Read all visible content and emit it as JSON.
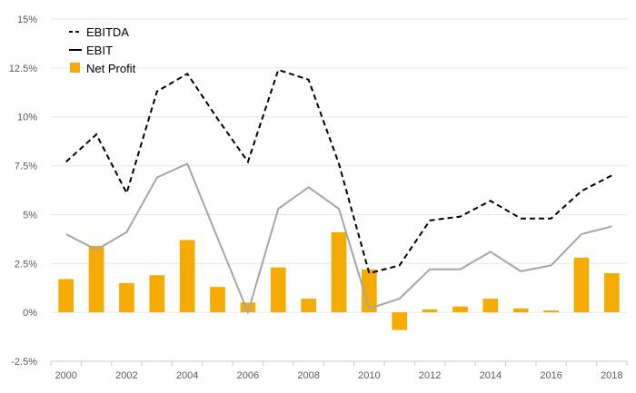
{
  "chart_data": {
    "type": "bar",
    "x": [
      2000,
      2001,
      2002,
      2003,
      2004,
      2005,
      2006,
      2007,
      2008,
      2009,
      2010,
      2011,
      2012,
      2013,
      2014,
      2015,
      2016,
      2017,
      2018
    ],
    "x_tick_labels": [
      "2000",
      "2002",
      "2004",
      "2006",
      "2008",
      "2010",
      "2012",
      "2014",
      "2016",
      "2018"
    ],
    "y_tick_labels": [
      "-2.5%",
      "0%",
      "2.5%",
      "5%",
      "7.5%",
      "10%",
      "12.5%",
      "15%"
    ],
    "ylim": [
      -2.5,
      15
    ],
    "grid": true,
    "legend_position": "top-left",
    "series": [
      {
        "name": "EBITDA",
        "kind": "line",
        "style": "dashed",
        "color": "#000000",
        "values": [
          7.7,
          9.1,
          6.1,
          11.3,
          12.2,
          9.9,
          7.7,
          12.4,
          11.9,
          7.6,
          2.0,
          2.4,
          4.7,
          4.9,
          5.7,
          4.8,
          4.8,
          6.2,
          7.0
        ]
      },
      {
        "name": "EBIT",
        "kind": "line",
        "style": "solid",
        "color": "#a6a6a6",
        "legend_color": "#000000",
        "values": [
          4.0,
          3.2,
          4.1,
          6.9,
          7.6,
          3.8,
          0.0,
          5.3,
          6.4,
          5.3,
          0.2,
          0.7,
          2.2,
          2.2,
          3.1,
          2.1,
          2.4,
          4.0,
          4.4
        ]
      },
      {
        "name": "Net Profit",
        "kind": "bar",
        "color": "#f5ab00",
        "values": [
          1.7,
          3.4,
          1.5,
          1.9,
          3.7,
          1.3,
          0.5,
          2.3,
          0.7,
          4.1,
          2.2,
          -0.9,
          0.15,
          0.3,
          0.7,
          0.2,
          0.1,
          2.8,
          2.0
        ]
      }
    ]
  }
}
